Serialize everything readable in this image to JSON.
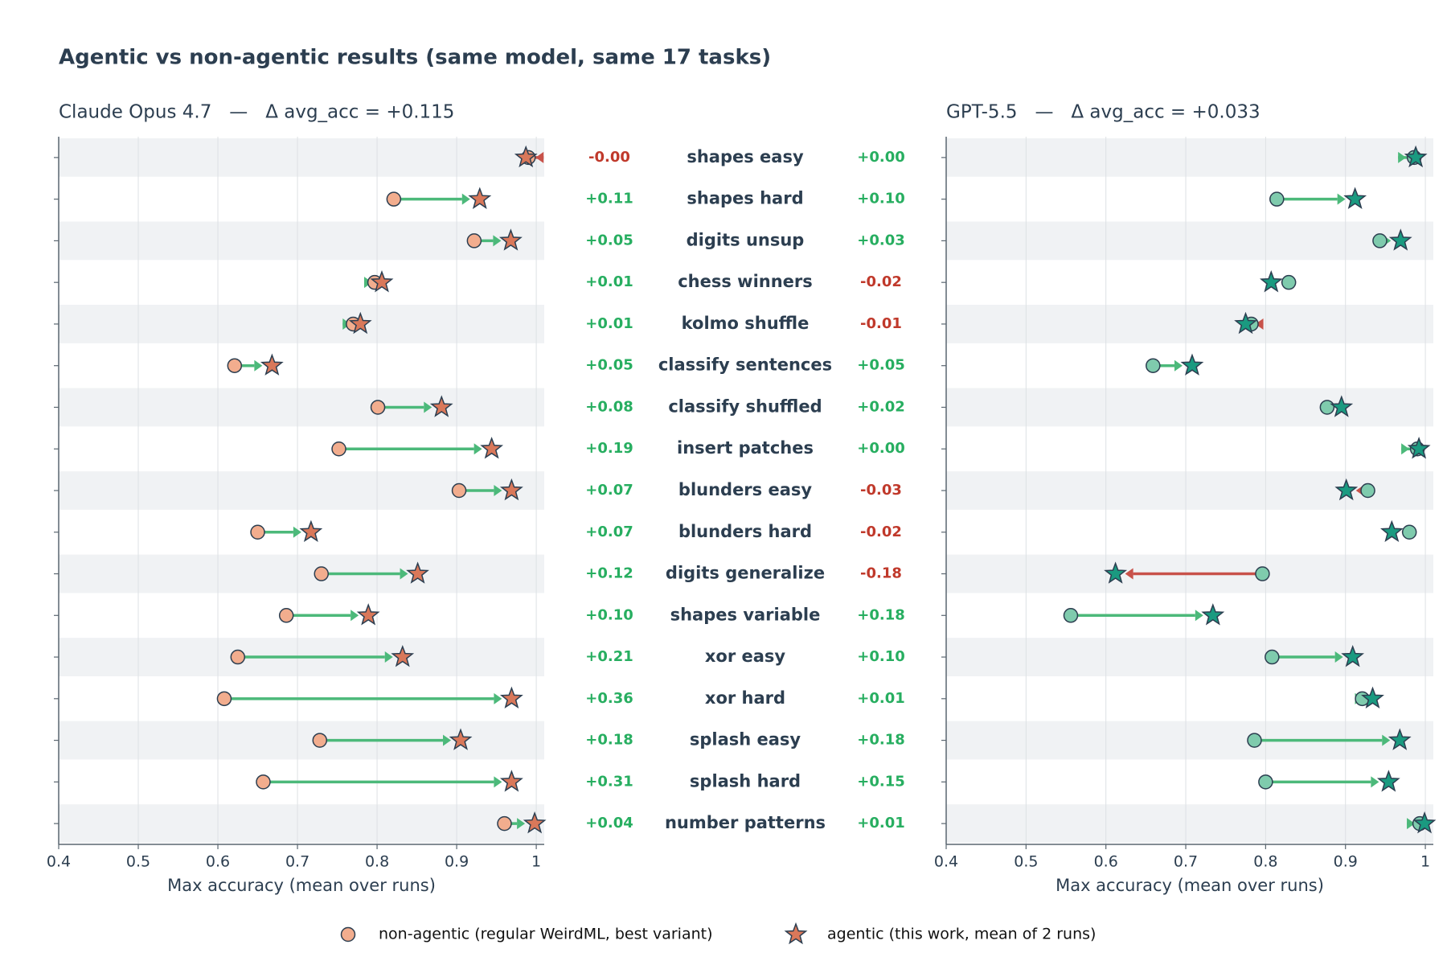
{
  "title": "Agentic vs non-agentic results (same model, same 17 tasks)",
  "categories": [
    "shapes easy",
    "shapes hard",
    "digits unsup",
    "chess winners",
    "kolmo shuffle",
    "classify sentences",
    "classify shuffled",
    "insert patches",
    "blunders easy",
    "blunders hard",
    "digits generalize",
    "shapes variable",
    "xor easy",
    "xor hard",
    "splash easy",
    "splash hard",
    "number patterns"
  ],
  "chart_data": [
    {
      "type": "dumbbell",
      "title": "Claude Opus 4.7   —   Δ avg_acc = +0.115",
      "xlabel": "Max accuracy (mean over runs)",
      "xlim": [
        0.4,
        1.01
      ],
      "xticks": [
        0.4,
        0.5,
        0.6,
        0.7,
        0.8,
        0.9,
        1.0
      ],
      "grid": true,
      "series": [
        {
          "name": "non-agentic (regular WeirdML, best variant)",
          "color": "#f2ad8e",
          "marker": "circle",
          "values": [
            0.99,
            0.821,
            0.922,
            0.797,
            0.77,
            0.621,
            0.801,
            0.752,
            0.903,
            0.65,
            0.73,
            0.686,
            0.625,
            0.608,
            0.728,
            0.657,
            0.96
          ]
        },
        {
          "name": "agentic (this work, mean of 2 runs)",
          "color": "#d9785a",
          "marker": "star",
          "values": [
            0.987,
            0.929,
            0.968,
            0.806,
            0.779,
            0.668,
            0.881,
            0.944,
            0.969,
            0.717,
            0.851,
            0.789,
            0.832,
            0.969,
            0.905,
            0.969,
            0.998
          ]
        }
      ],
      "delta": {
        "values": [
          -0.003,
          0.108,
          0.046,
          0.009,
          0.009,
          0.047,
          0.08,
          0.192,
          0.066,
          0.067,
          0.121,
          0.103,
          0.207,
          0.361,
          0.177,
          0.312,
          0.038
        ],
        "value_labels": [
          "-0.00",
          "+0.11",
          "+0.05",
          "+0.01",
          "+0.01",
          "+0.05",
          "+0.08",
          "+0.19",
          "+0.07",
          "+0.07",
          "+0.12",
          "+0.10",
          "+0.21",
          "+0.36",
          "+0.18",
          "+0.31",
          "+0.04"
        ]
      }
    },
    {
      "type": "dumbbell",
      "title": "GPT-5.5   —   Δ avg_acc = +0.033",
      "xlabel": "Max accuracy (mean over runs)",
      "xlim": [
        0.4,
        1.01
      ],
      "xticks": [
        0.4,
        0.5,
        0.6,
        0.7,
        0.8,
        0.9,
        1.0
      ],
      "grid": true,
      "series": [
        {
          "color": "#7fcbad",
          "marker": "circle",
          "values": [
            0.986,
            0.814,
            0.943,
            0.829,
            0.782,
            0.659,
            0.877,
            0.99,
            0.928,
            0.98,
            0.796,
            0.556,
            0.808,
            0.921,
            0.786,
            0.8,
            0.993
          ]
        },
        {
          "color": "#1a9a80",
          "marker": "star",
          "values": [
            0.988,
            0.912,
            0.969,
            0.807,
            0.775,
            0.708,
            0.895,
            0.992,
            0.901,
            0.958,
            0.612,
            0.734,
            0.909,
            0.934,
            0.968,
            0.954,
            0.999
          ]
        }
      ],
      "delta": {
        "values": [
          0.002,
          0.098,
          0.026,
          -0.022,
          -0.007,
          0.049,
          0.018,
          0.002,
          -0.027,
          -0.022,
          -0.184,
          0.178,
          0.101,
          0.013,
          0.182,
          0.154,
          0.006
        ],
        "value_labels": [
          "+0.00",
          "+0.10",
          "+0.03",
          "-0.02",
          "-0.01",
          "+0.05",
          "+0.02",
          "+0.00",
          "-0.03",
          "-0.02",
          "-0.18",
          "+0.18",
          "+0.10",
          "+0.01",
          "+0.18",
          "+0.15",
          "+0.01"
        ]
      }
    }
  ]
}
